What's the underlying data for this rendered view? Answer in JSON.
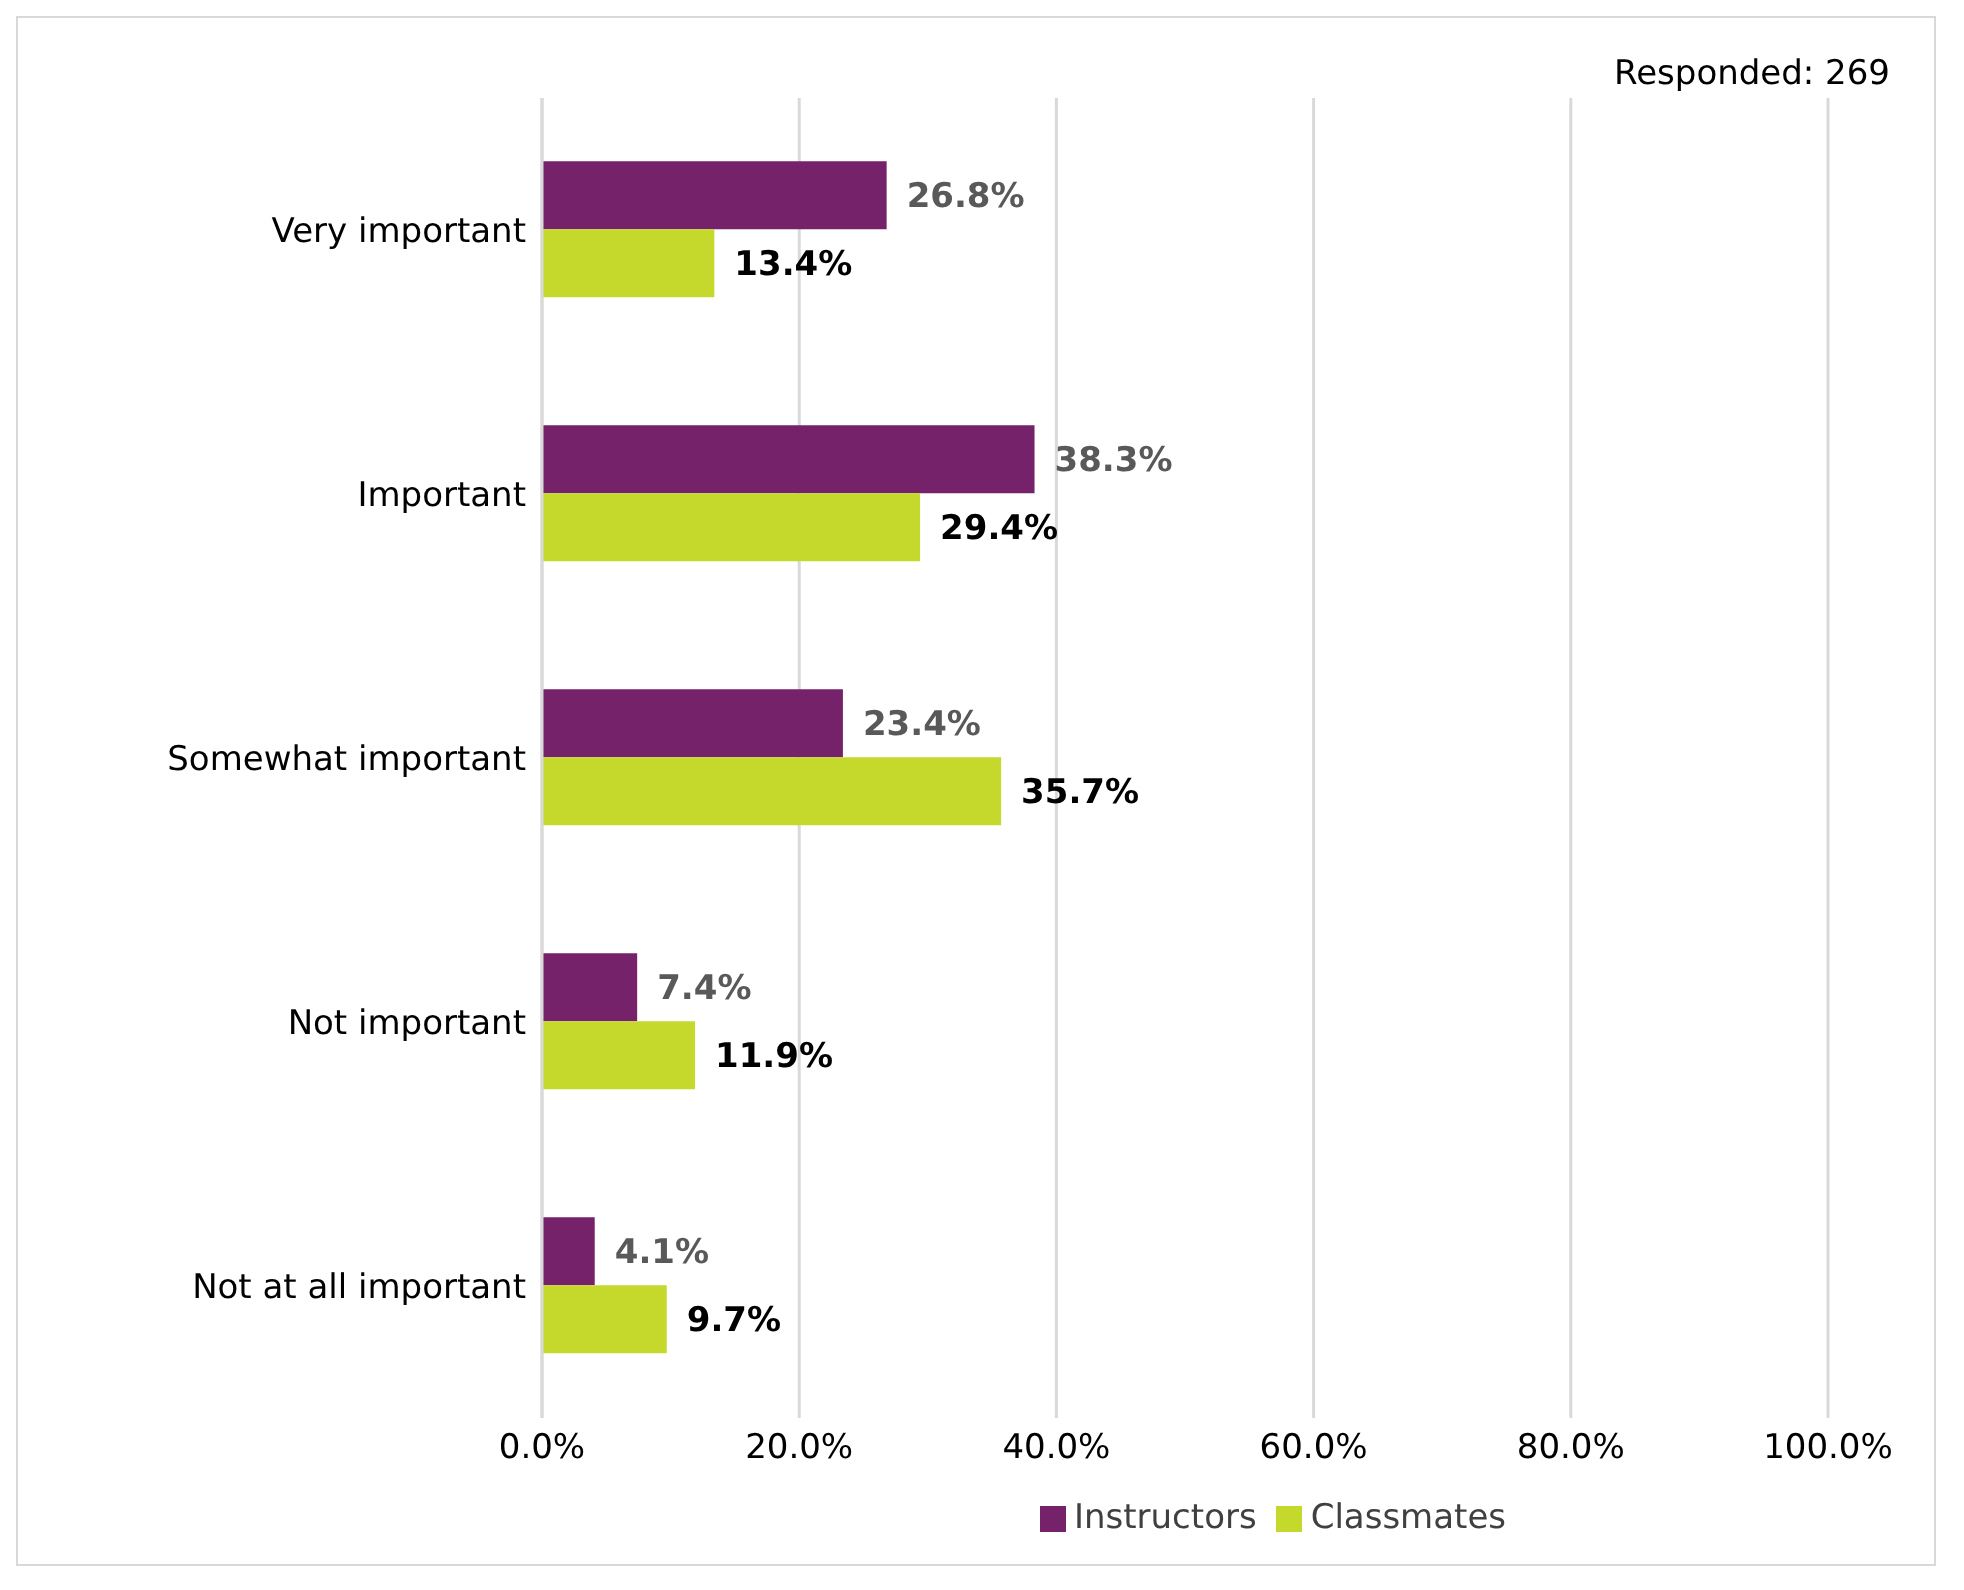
{
  "chart_data": {
    "type": "bar",
    "orientation": "horizontal",
    "categories": [
      "Very important",
      "Important",
      "Somewhat important",
      "Not important",
      "Not at all important"
    ],
    "series": [
      {
        "name": "Instructors",
        "color": "#76226a",
        "values": [
          26.8,
          38.3,
          23.4,
          7.4,
          4.1
        ],
        "value_labels": [
          "26.8%",
          "38.3%",
          "23.4%",
          "7.4%",
          "4.1%"
        ]
      },
      {
        "name": "Classmates",
        "color": "#c5d92d",
        "values": [
          13.4,
          29.4,
          35.7,
          11.9,
          9.7
        ],
        "value_labels": [
          "13.4%",
          "29.4%",
          "35.7%",
          "11.9%",
          "9.7%"
        ]
      }
    ],
    "xlim": [
      0,
      100
    ],
    "xticks": [
      {
        "value": 0,
        "label": "0.0%"
      },
      {
        "value": 20,
        "label": "20.0%"
      },
      {
        "value": 40,
        "label": "40.0%"
      },
      {
        "value": 60,
        "label": "60.0%"
      },
      {
        "value": 80,
        "label": "80.0%"
      },
      {
        "value": 100,
        "label": "100.0%"
      }
    ],
    "grid": "x",
    "legend": "bottom",
    "annotations": [
      "Responded: 269"
    ]
  }
}
